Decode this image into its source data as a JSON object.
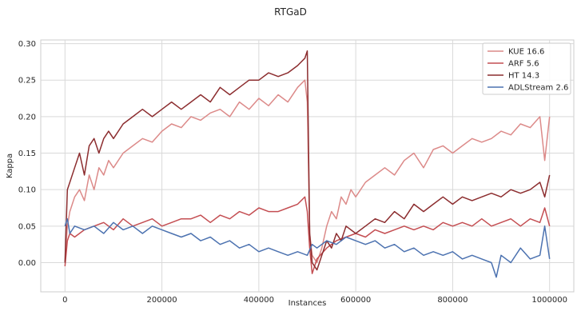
{
  "chart_data": {
    "type": "line",
    "title": "RTGaD",
    "xlabel": "Instances",
    "ylabel": "Kappa",
    "xlim": [
      -50000,
      1050000
    ],
    "ylim": [
      -0.04,
      0.305
    ],
    "xticks": [
      0,
      200000,
      400000,
      600000,
      800000,
      1000000
    ],
    "xtick_labels": [
      "0",
      "200000",
      "400000",
      "600000",
      "800000",
      "1000000"
    ],
    "yticks": [
      0.0,
      0.05,
      0.1,
      0.15,
      0.2,
      0.25,
      0.3
    ],
    "ytick_labels": [
      "0.00",
      "0.05",
      "0.10",
      "0.15",
      "0.20",
      "0.25",
      "0.30"
    ],
    "grid": true,
    "legend_position": "top-right",
    "series": [
      {
        "name": "KUE 16.6",
        "color": "#dc8a89",
        "x": [
          0,
          5000,
          10000,
          20000,
          30000,
          40000,
          50000,
          60000,
          70000,
          80000,
          90000,
          100000,
          120000,
          140000,
          160000,
          180000,
          200000,
          220000,
          240000,
          260000,
          280000,
          300000,
          320000,
          340000,
          360000,
          380000,
          400000,
          420000,
          440000,
          460000,
          480000,
          495000,
          500000,
          505000,
          510000,
          520000,
          530000,
          540000,
          550000,
          560000,
          570000,
          580000,
          590000,
          600000,
          620000,
          640000,
          660000,
          680000,
          700000,
          720000,
          740000,
          760000,
          780000,
          800000,
          820000,
          840000,
          860000,
          880000,
          900000,
          920000,
          940000,
          960000,
          980000,
          990000,
          1000000
        ],
        "y": [
          0.0,
          0.05,
          0.07,
          0.09,
          0.1,
          0.085,
          0.12,
          0.1,
          0.13,
          0.12,
          0.14,
          0.13,
          0.15,
          0.16,
          0.17,
          0.165,
          0.18,
          0.19,
          0.185,
          0.2,
          0.195,
          0.205,
          0.21,
          0.2,
          0.22,
          0.21,
          0.225,
          0.215,
          0.23,
          0.22,
          0.24,
          0.25,
          0.22,
          0.04,
          0.01,
          0.0,
          0.02,
          0.05,
          0.07,
          0.06,
          0.09,
          0.08,
          0.1,
          0.09,
          0.11,
          0.12,
          0.13,
          0.12,
          0.14,
          0.15,
          0.13,
          0.155,
          0.16,
          0.15,
          0.16,
          0.17,
          0.165,
          0.17,
          0.18,
          0.175,
          0.19,
          0.185,
          0.2,
          0.14,
          0.2
        ]
      },
      {
        "name": "ARF 5.6",
        "color": "#c44e52",
        "x": [
          0,
          5000,
          10000,
          20000,
          40000,
          60000,
          80000,
          100000,
          120000,
          140000,
          160000,
          180000,
          200000,
          220000,
          240000,
          260000,
          280000,
          300000,
          320000,
          340000,
          360000,
          380000,
          400000,
          420000,
          440000,
          460000,
          480000,
          495000,
          500000,
          505000,
          510000,
          520000,
          540000,
          560000,
          580000,
          600000,
          620000,
          640000,
          660000,
          680000,
          700000,
          720000,
          740000,
          760000,
          780000,
          800000,
          820000,
          840000,
          860000,
          880000,
          900000,
          920000,
          940000,
          960000,
          980000,
          990000,
          1000000
        ],
        "y": [
          -0.005,
          0.03,
          0.04,
          0.035,
          0.045,
          0.05,
          0.055,
          0.045,
          0.06,
          0.05,
          0.055,
          0.06,
          0.05,
          0.055,
          0.06,
          0.06,
          0.065,
          0.055,
          0.065,
          0.06,
          0.07,
          0.065,
          0.075,
          0.07,
          0.07,
          0.075,
          0.08,
          0.09,
          0.07,
          0.02,
          -0.015,
          0.005,
          0.02,
          0.03,
          0.035,
          0.04,
          0.035,
          0.045,
          0.04,
          0.045,
          0.05,
          0.045,
          0.05,
          0.045,
          0.055,
          0.05,
          0.055,
          0.05,
          0.06,
          0.05,
          0.055,
          0.06,
          0.05,
          0.06,
          0.055,
          0.075,
          0.05
        ]
      },
      {
        "name": "HT 14.3",
        "color": "#8c2d2f",
        "x": [
          0,
          5000,
          10000,
          20000,
          30000,
          40000,
          50000,
          60000,
          70000,
          80000,
          90000,
          100000,
          120000,
          140000,
          160000,
          180000,
          200000,
          220000,
          240000,
          260000,
          280000,
          300000,
          320000,
          340000,
          360000,
          380000,
          400000,
          420000,
          440000,
          460000,
          480000,
          495000,
          500000,
          505000,
          510000,
          520000,
          530000,
          540000,
          550000,
          560000,
          570000,
          580000,
          600000,
          620000,
          640000,
          660000,
          680000,
          700000,
          720000,
          740000,
          760000,
          780000,
          800000,
          820000,
          840000,
          860000,
          880000,
          900000,
          920000,
          940000,
          960000,
          980000,
          990000,
          1000000
        ],
        "y": [
          0.0,
          0.1,
          0.11,
          0.13,
          0.15,
          0.12,
          0.16,
          0.17,
          0.15,
          0.17,
          0.18,
          0.17,
          0.19,
          0.2,
          0.21,
          0.2,
          0.21,
          0.22,
          0.21,
          0.22,
          0.23,
          0.22,
          0.24,
          0.23,
          0.24,
          0.25,
          0.25,
          0.26,
          0.255,
          0.26,
          0.27,
          0.28,
          0.29,
          0.04,
          0.0,
          -0.01,
          0.01,
          0.03,
          0.02,
          0.04,
          0.03,
          0.05,
          0.04,
          0.05,
          0.06,
          0.055,
          0.07,
          0.06,
          0.08,
          0.07,
          0.08,
          0.09,
          0.08,
          0.09,
          0.085,
          0.09,
          0.095,
          0.09,
          0.1,
          0.095,
          0.1,
          0.11,
          0.09,
          0.12
        ]
      },
      {
        "name": "ADLStream 2.6",
        "color": "#4c72b0",
        "x": [
          0,
          5000,
          10000,
          20000,
          40000,
          60000,
          80000,
          100000,
          120000,
          140000,
          160000,
          180000,
          200000,
          220000,
          240000,
          260000,
          280000,
          300000,
          320000,
          340000,
          360000,
          380000,
          400000,
          420000,
          440000,
          460000,
          480000,
          500000,
          510000,
          520000,
          540000,
          560000,
          580000,
          600000,
          620000,
          640000,
          660000,
          680000,
          700000,
          720000,
          740000,
          760000,
          780000,
          800000,
          820000,
          840000,
          860000,
          880000,
          890000,
          900000,
          920000,
          940000,
          960000,
          980000,
          990000,
          1000000
        ],
        "y": [
          0.05,
          0.06,
          0.04,
          0.05,
          0.045,
          0.05,
          0.04,
          0.055,
          0.045,
          0.05,
          0.04,
          0.05,
          0.045,
          0.04,
          0.035,
          0.04,
          0.03,
          0.035,
          0.025,
          0.03,
          0.02,
          0.025,
          0.015,
          0.02,
          0.015,
          0.01,
          0.015,
          0.01,
          0.025,
          0.02,
          0.03,
          0.025,
          0.035,
          0.03,
          0.025,
          0.03,
          0.02,
          0.025,
          0.015,
          0.02,
          0.01,
          0.015,
          0.01,
          0.015,
          0.005,
          0.01,
          0.005,
          0.0,
          -0.02,
          0.01,
          0.0,
          0.02,
          0.005,
          0.01,
          0.05,
          0.005
        ]
      }
    ]
  }
}
